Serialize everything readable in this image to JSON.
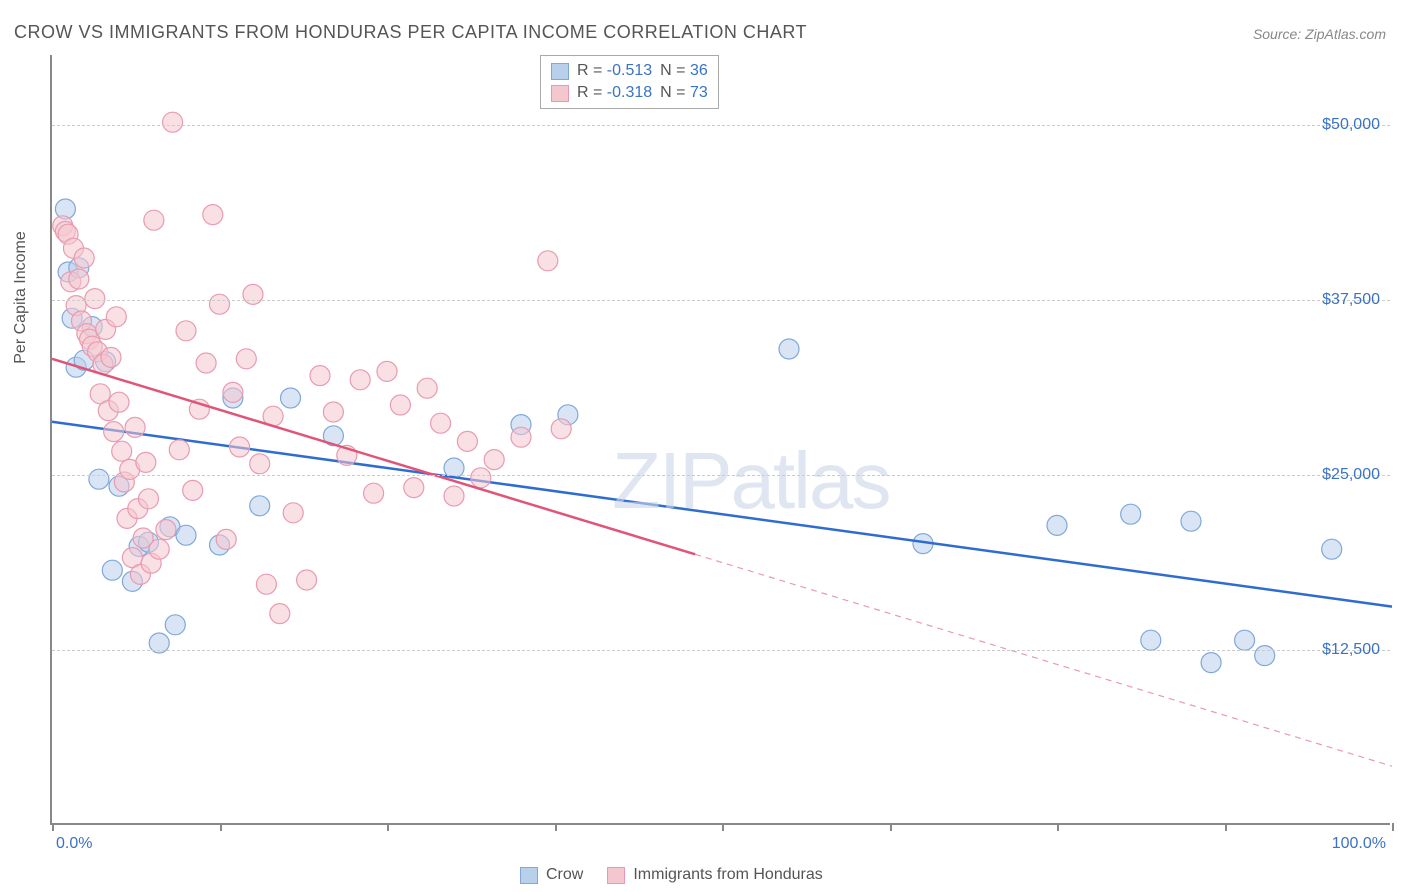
{
  "title": "CROW VS IMMIGRANTS FROM HONDURAS PER CAPITA INCOME CORRELATION CHART",
  "source": "Source: ZipAtlas.com",
  "watermark_bold": "ZIP",
  "watermark_light": "atlas",
  "yaxis_title": "Per Capita Income",
  "x_min_label": "0.0%",
  "x_max_label": "100.0%",
  "chart": {
    "type": "scatter-with-regression",
    "xlim": [
      0,
      100
    ],
    "ylim": [
      0,
      55000
    ],
    "y_ticks": [
      12500,
      25000,
      37500,
      50000
    ],
    "y_tick_labels": [
      "$12,500",
      "$25,000",
      "$37,500",
      "$50,000"
    ],
    "x_ticks": [
      0,
      12.5,
      25,
      37.5,
      50,
      62.5,
      75,
      87.5,
      100
    ],
    "grid_color": "#cccccc",
    "background_color": "#ffffff",
    "axis_color": "#888888",
    "ylabel_color": "#3a72c4",
    "marker_radius": 10,
    "marker_opacity": 0.55,
    "line_width": 2.5,
    "series": [
      {
        "name": "Crow",
        "color_fill": "#b9d0eb",
        "color_stroke": "#7fa8d9",
        "line_color": "#2e6cd1",
        "R": -0.513,
        "N": 36,
        "regression": {
          "x1": 0,
          "y1": 28800,
          "x2": 100,
          "y2": 15600,
          "dash_from_x": null
        },
        "points": [
          [
            1.0,
            44000
          ],
          [
            1.2,
            39500
          ],
          [
            1.5,
            36200
          ],
          [
            1.8,
            32700
          ],
          [
            2.0,
            39800
          ],
          [
            2.4,
            33200
          ],
          [
            3.0,
            35600
          ],
          [
            3.5,
            24700
          ],
          [
            4.0,
            33100
          ],
          [
            4.5,
            18200
          ],
          [
            5.0,
            24200
          ],
          [
            6.0,
            17400
          ],
          [
            6.5,
            19900
          ],
          [
            7.2,
            20200
          ],
          [
            8.0,
            13000
          ],
          [
            8.8,
            21300
          ],
          [
            9.2,
            14300
          ],
          [
            10.0,
            20700
          ],
          [
            12.5,
            20000
          ],
          [
            13.5,
            30500
          ],
          [
            15.5,
            22800
          ],
          [
            17.8,
            30500
          ],
          [
            21.0,
            27800
          ],
          [
            30.0,
            25500
          ],
          [
            35.0,
            28600
          ],
          [
            38.5,
            29300
          ],
          [
            55.0,
            34000
          ],
          [
            65.0,
            20100
          ],
          [
            75.0,
            21400
          ],
          [
            80.5,
            22200
          ],
          [
            82.0,
            13200
          ],
          [
            85.0,
            21700
          ],
          [
            86.5,
            11600
          ],
          [
            89.0,
            13200
          ],
          [
            90.5,
            12100
          ],
          [
            95.5,
            19700
          ]
        ]
      },
      {
        "name": "Immigrants from Honduras",
        "color_fill": "#f4c6d0",
        "color_stroke": "#e89bb0",
        "line_color": "#e05577",
        "R": -0.318,
        "N": 73,
        "regression": {
          "x1": 0,
          "y1": 33300,
          "x2": 100,
          "y2": 4200,
          "dash_from_x": 48
        },
        "points": [
          [
            0.8,
            42800
          ],
          [
            1.0,
            42400
          ],
          [
            1.2,
            42200
          ],
          [
            1.4,
            38800
          ],
          [
            1.6,
            41200
          ],
          [
            1.8,
            37100
          ],
          [
            2.0,
            39000
          ],
          [
            2.2,
            36000
          ],
          [
            2.4,
            40500
          ],
          [
            2.6,
            35100
          ],
          [
            2.8,
            34700
          ],
          [
            3.0,
            34200
          ],
          [
            3.2,
            37600
          ],
          [
            3.4,
            33800
          ],
          [
            3.6,
            30800
          ],
          [
            3.8,
            32900
          ],
          [
            4.0,
            35400
          ],
          [
            4.2,
            29600
          ],
          [
            4.4,
            33400
          ],
          [
            4.6,
            28100
          ],
          [
            4.8,
            36300
          ],
          [
            5.0,
            30200
          ],
          [
            5.2,
            26700
          ],
          [
            5.4,
            24500
          ],
          [
            5.6,
            21900
          ],
          [
            5.8,
            25400
          ],
          [
            6.0,
            19100
          ],
          [
            6.2,
            28400
          ],
          [
            6.4,
            22600
          ],
          [
            6.6,
            17900
          ],
          [
            6.8,
            20500
          ],
          [
            7.0,
            25900
          ],
          [
            7.2,
            23300
          ],
          [
            7.4,
            18700
          ],
          [
            7.6,
            43200
          ],
          [
            8.0,
            19700
          ],
          [
            8.5,
            21100
          ],
          [
            9.0,
            50200
          ],
          [
            9.5,
            26800
          ],
          [
            10.0,
            35300
          ],
          [
            10.5,
            23900
          ],
          [
            11.0,
            29700
          ],
          [
            11.5,
            33000
          ],
          [
            12.0,
            43600
          ],
          [
            12.5,
            37200
          ],
          [
            13.0,
            20400
          ],
          [
            13.5,
            30900
          ],
          [
            14.0,
            27000
          ],
          [
            14.5,
            33300
          ],
          [
            15.0,
            37900
          ],
          [
            15.5,
            25800
          ],
          [
            16.0,
            17200
          ],
          [
            16.5,
            29200
          ],
          [
            17.0,
            15100
          ],
          [
            18.0,
            22300
          ],
          [
            19.0,
            17500
          ],
          [
            20.0,
            32100
          ],
          [
            21.0,
            29500
          ],
          [
            22.0,
            26400
          ],
          [
            23.0,
            31800
          ],
          [
            24.0,
            23700
          ],
          [
            25.0,
            32400
          ],
          [
            26.0,
            30000
          ],
          [
            27.0,
            24100
          ],
          [
            28.0,
            31200
          ],
          [
            29.0,
            28700
          ],
          [
            30.0,
            23500
          ],
          [
            31.0,
            27400
          ],
          [
            32.0,
            24800
          ],
          [
            33.0,
            26100
          ],
          [
            35.0,
            27700
          ],
          [
            37.0,
            40300
          ],
          [
            38.0,
            28300
          ]
        ]
      }
    ]
  },
  "legend_stats": [
    {
      "r_label": "R = ",
      "r_val": "-0.513",
      "n_label": "   N = ",
      "n_val": "36"
    },
    {
      "r_label": "R = ",
      "r_val": "-0.318",
      "n_label": "   N = ",
      "n_val": "73"
    }
  ],
  "legend_bottom": [
    {
      "label": "Crow"
    },
    {
      "label": "Immigrants from Honduras"
    }
  ]
}
